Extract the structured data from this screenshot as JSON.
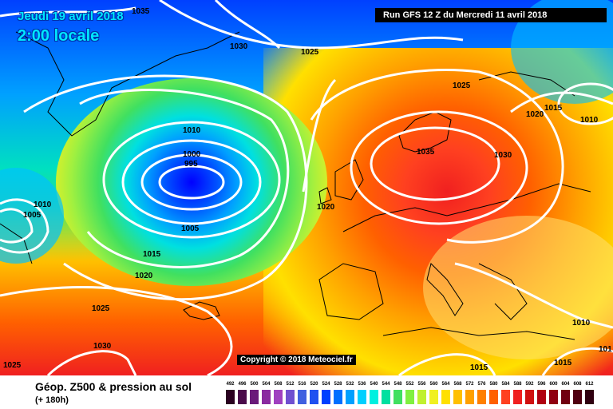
{
  "header": {
    "date": "Jeudi 19 avril 2018",
    "time": "2:00 locale",
    "run": "Run GFS 12 Z du Mercredi 11 avril 2018"
  },
  "footer": {
    "copyright": "Copyright © 2018 Meteociel.fr",
    "title": "Géop. Z500 & pression au sol",
    "subtitle": "(+ 180h)"
  },
  "legend": {
    "values": [
      "492",
      "496",
      "500",
      "504",
      "508",
      "512",
      "516",
      "520",
      "524",
      "528",
      "532",
      "536",
      "540",
      "544",
      "548",
      "552",
      "556",
      "560",
      "564",
      "568",
      "572",
      "576",
      "580",
      "584",
      "588",
      "592",
      "596",
      "600",
      "604",
      "608",
      "612"
    ],
    "colors": [
      "#2a0020",
      "#4a0a4a",
      "#6a1a7a",
      "#8a2aa0",
      "#a040c0",
      "#7050d0",
      "#4060e0",
      "#2050f0",
      "#0040ff",
      "#0070ff",
      "#00a0ff",
      "#00d0ff",
      "#00f0e0",
      "#00e0a0",
      "#40e060",
      "#80f040",
      "#c0f030",
      "#f0f020",
      "#ffe000",
      "#ffc000",
      "#ffa000",
      "#ff8000",
      "#ff6000",
      "#ff4020",
      "#f02020",
      "#d01010",
      "#b00010",
      "#900010",
      "#700010",
      "#500010",
      "#300010"
    ]
  },
  "isobars": [
    {
      "label": "1035"
    },
    {
      "label": "1030"
    },
    {
      "label": "1025"
    },
    {
      "label": "1010"
    },
    {
      "label": "1000"
    },
    {
      "label": "995"
    },
    {
      "label": "1005"
    },
    {
      "label": "1010"
    },
    {
      "label": "1005"
    },
    {
      "label": "1015"
    },
    {
      "label": "1020"
    },
    {
      "label": "1025"
    },
    {
      "label": "1030"
    },
    {
      "label": "1025"
    },
    {
      "label": "1020"
    },
    {
      "label": "1025"
    },
    {
      "label": "1035"
    },
    {
      "label": "1030"
    },
    {
      "label": "1015"
    },
    {
      "label": "1020"
    },
    {
      "label": "1010"
    },
    {
      "label": "1015"
    },
    {
      "label": "1015"
    },
    {
      "label": "1010"
    },
    {
      "label": "101"
    }
  ]
}
